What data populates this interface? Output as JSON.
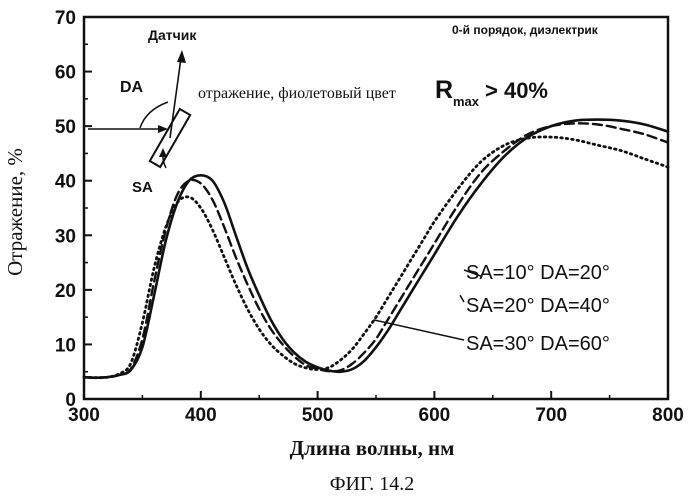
{
  "chart_data": {
    "type": "line",
    "xlabel": "Длина волны, нм",
    "ylabel": "Отражение, %",
    "caption": "ФИГ. 14.2",
    "xlim": [
      300,
      800
    ],
    "ylim": [
      0,
      70
    ],
    "xticks": [
      300,
      400,
      500,
      600,
      700,
      800
    ],
    "yticks": [
      0,
      10,
      20,
      30,
      40,
      50,
      60,
      70
    ],
    "grid": false,
    "inset_note": "0-й порядок, диэлектрик",
    "diagram": {
      "sensor_label": "Датчик",
      "da_label": "DA",
      "sa_label": "SA",
      "reflection_text": "отражение, фиолетовый цвет",
      "rmax_symbol": "R",
      "rmax_sub": "max",
      "rmax_value": "> 40%"
    },
    "series": [
      {
        "name": "SA=10° DA=20°",
        "style": "solid",
        "x": [
          300,
          310,
          320,
          330,
          340,
          350,
          360,
          370,
          380,
          390,
          400,
          410,
          420,
          430,
          440,
          450,
          460,
          470,
          480,
          490,
          500,
          510,
          520,
          530,
          540,
          550,
          560,
          570,
          580,
          590,
          600,
          620,
          640,
          660,
          680,
          700,
          720,
          740,
          760,
          780,
          800
        ],
        "values": [
          4.0,
          3.9,
          4.0,
          4.4,
          5.3,
          9.5,
          19.0,
          29.0,
          36.0,
          40.0,
          41.0,
          40.0,
          36.0,
          30.0,
          24.0,
          19.0,
          14.5,
          11.0,
          8.5,
          6.8,
          5.8,
          5.2,
          5.0,
          5.5,
          7.0,
          9.5,
          12.5,
          16.0,
          19.5,
          23.0,
          26.5,
          33.5,
          39.5,
          44.5,
          48.0,
          50.0,
          51.0,
          51.2,
          51.0,
          50.3,
          49.0
        ]
      },
      {
        "name": "SA=20° DA=40°",
        "style": "dashed",
        "x": [
          300,
          310,
          320,
          330,
          340,
          350,
          360,
          370,
          380,
          390,
          400,
          410,
          420,
          430,
          440,
          450,
          460,
          470,
          480,
          490,
          500,
          510,
          520,
          530,
          540,
          550,
          560,
          570,
          580,
          590,
          600,
          620,
          640,
          660,
          680,
          700,
          720,
          740,
          760,
          780,
          800
        ],
        "values": [
          4.0,
          3.9,
          4.0,
          4.4,
          5.5,
          11.0,
          21.5,
          31.0,
          37.5,
          40.0,
          39.5,
          36.5,
          31.5,
          26.0,
          21.0,
          16.5,
          12.8,
          10.0,
          7.8,
          6.2,
          5.5,
          5.1,
          5.3,
          6.5,
          8.5,
          11.0,
          14.5,
          18.0,
          21.5,
          25.0,
          28.5,
          35.5,
          41.5,
          45.5,
          48.5,
          50.0,
          50.5,
          50.3,
          49.5,
          48.5,
          47.0
        ]
      },
      {
        "name": "SA=30° DA=60°",
        "style": "dotted",
        "x": [
          300,
          310,
          320,
          330,
          340,
          350,
          360,
          370,
          380,
          390,
          400,
          410,
          420,
          430,
          440,
          450,
          460,
          470,
          480,
          490,
          500,
          510,
          520,
          530,
          540,
          550,
          560,
          570,
          580,
          590,
          600,
          620,
          640,
          660,
          680,
          700,
          720,
          740,
          760,
          780,
          800
        ],
        "values": [
          4.0,
          3.9,
          4.0,
          4.6,
          6.5,
          14.0,
          24.0,
          31.5,
          36.0,
          37.0,
          35.0,
          31.0,
          26.0,
          21.0,
          16.5,
          12.8,
          10.0,
          8.0,
          6.5,
          5.7,
          5.4,
          5.8,
          7.2,
          9.2,
          12.0,
          15.0,
          18.5,
          22.0,
          25.5,
          29.0,
          32.5,
          38.5,
          43.5,
          46.5,
          47.8,
          48.0,
          47.5,
          46.5,
          45.5,
          44.0,
          42.5
        ]
      }
    ]
  }
}
